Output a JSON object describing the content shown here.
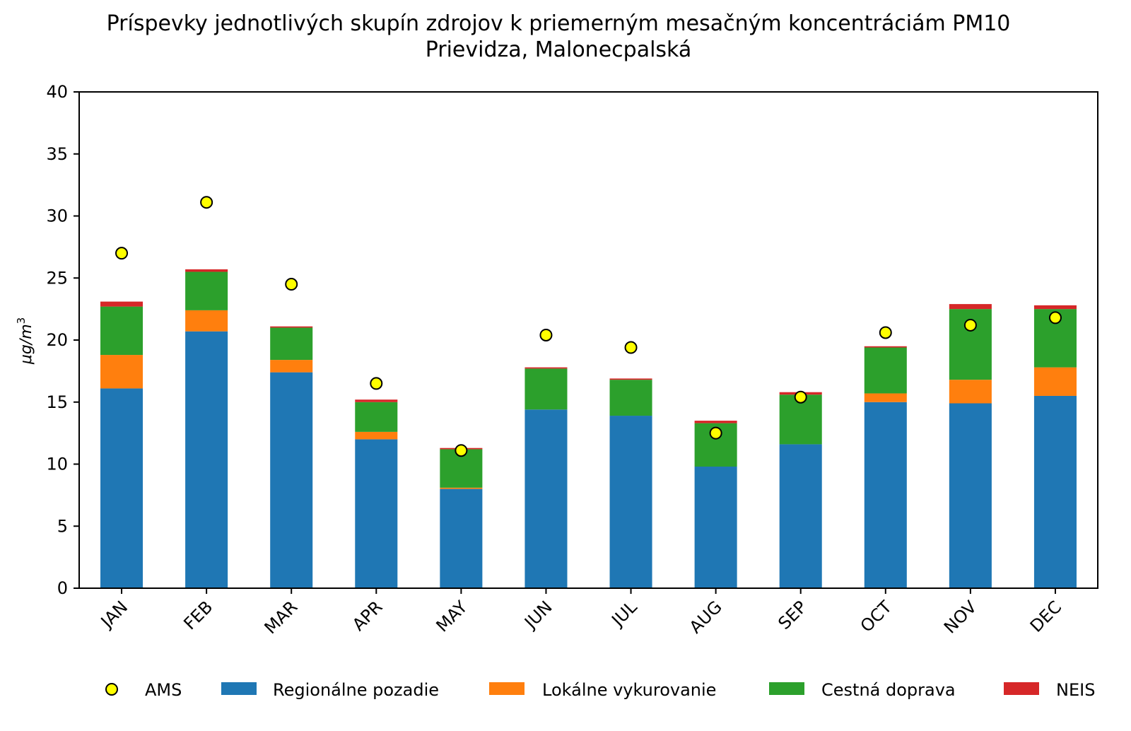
{
  "chart_data": {
    "type": "bar",
    "stacked": true,
    "title": "Príspevky jednotlivých skupín zdrojov k priemerným mesačným koncentráciám PM10",
    "subtitle": "Prievidza, Malonecpalská",
    "xlabel": "",
    "ylabel": "μg/m",
    "ylabel_superscript": "3",
    "ylim": [
      0,
      40
    ],
    "yticks": [
      0,
      5,
      10,
      15,
      20,
      25,
      30,
      35,
      40
    ],
    "categories": [
      "JAN",
      "FEB",
      "MAR",
      "APR",
      "MAY",
      "JUN",
      "JUL",
      "AUG",
      "SEP",
      "OCT",
      "NOV",
      "DEC"
    ],
    "series": [
      {
        "name": "Regionálne pozadie",
        "color": "#1f77b4",
        "values": [
          16.1,
          20.7,
          17.4,
          12.0,
          8.0,
          14.4,
          13.9,
          9.8,
          11.6,
          15.0,
          14.9,
          15.5
        ]
      },
      {
        "name": "Lokálne vykurovanie",
        "color": "#ff7f0e",
        "values": [
          2.7,
          1.7,
          1.0,
          0.6,
          0.1,
          0.0,
          0.0,
          0.0,
          0.0,
          0.7,
          1.9,
          2.3
        ]
      },
      {
        "name": "Cestná doprava",
        "color": "#2ca02c",
        "values": [
          3.9,
          3.1,
          2.6,
          2.4,
          3.1,
          3.3,
          2.9,
          3.5,
          4.0,
          3.7,
          5.7,
          4.7
        ]
      },
      {
        "name": "NEIS",
        "color": "#d62728",
        "values": [
          0.4,
          0.2,
          0.1,
          0.2,
          0.1,
          0.1,
          0.1,
          0.2,
          0.2,
          0.1,
          0.4,
          0.3
        ]
      }
    ],
    "markers": {
      "name": "AMS",
      "color": "#ffff00",
      "values": [
        27.0,
        31.1,
        24.5,
        16.5,
        11.1,
        20.4,
        19.4,
        12.5,
        15.4,
        20.6,
        21.2,
        21.8
      ]
    },
    "legend": {
      "placement": "bottom",
      "entries": [
        "AMS",
        "Regionálne pozadie",
        "Lokálne vykurovanie",
        "Cestná doprava",
        "NEIS"
      ]
    },
    "grid": false
  }
}
